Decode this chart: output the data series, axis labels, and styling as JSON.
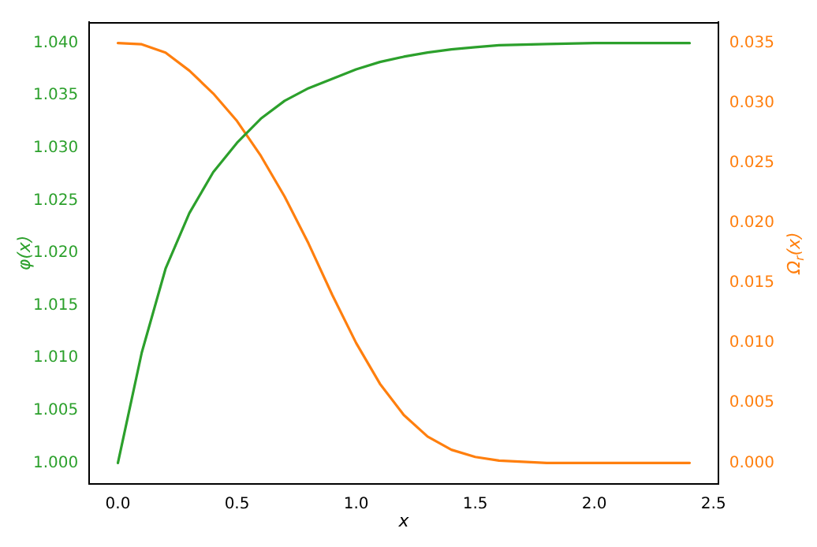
{
  "chart_data": {
    "type": "line",
    "xlabel": "x",
    "ylabel": "φ(x)",
    "y2label": "Ω$_{r}$(x)",
    "grid": false,
    "legend": false,
    "marker": "none",
    "line_style": "solid",
    "xlim": [
      -0.12,
      2.52
    ],
    "xticks": [
      {
        "value": 0,
        "label": "0.0"
      },
      {
        "value": 0.5,
        "label": "0.5"
      },
      {
        "value": 1,
        "label": "1.0"
      },
      {
        "value": 1.5,
        "label": "1.5"
      },
      {
        "value": 2,
        "label": "2.0"
      },
      {
        "value": 2.5,
        "label": "2.5"
      }
    ],
    "ylim": [
      0.998,
      1.042
    ],
    "yticks": [
      {
        "value": 1,
        "label": "1.000"
      },
      {
        "value": 1.005,
        "label": "1.005"
      },
      {
        "value": 1.01,
        "label": "1.010"
      },
      {
        "value": 1.015,
        "label": "1.015"
      },
      {
        "value": 1.02,
        "label": "1.020"
      },
      {
        "value": 1.025,
        "label": "1.025"
      },
      {
        "value": 1.03,
        "label": "1.030"
      },
      {
        "value": 1.035,
        "label": "1.035"
      },
      {
        "value": 1.04,
        "label": "1.040"
      }
    ],
    "y2lim": [
      -0.00175,
      0.03675
    ],
    "y2ticks": [
      {
        "value": 0,
        "label": "0.000"
      },
      {
        "value": 0.005,
        "label": "0.005"
      },
      {
        "value": 0.01,
        "label": "0.010"
      },
      {
        "value": 0.015,
        "label": "0.015"
      },
      {
        "value": 0.02,
        "label": "0.020"
      },
      {
        "value": 0.025,
        "label": "0.025"
      },
      {
        "value": 0.03,
        "label": "0.030"
      },
      {
        "value": 0.035,
        "label": "0.035"
      }
    ],
    "x": [
      0,
      0.1,
      0.2,
      0.3,
      0.4,
      0.5,
      0.6,
      0.7,
      0.8,
      0.9,
      1.0,
      1.1,
      1.2,
      1.3,
      1.4,
      1.5,
      1.6,
      1.8,
      2.0,
      2.4
    ],
    "series": [
      {
        "color": "#2ca02c",
        "values": [
          1.0,
          1.0105,
          1.0185,
          1.0238,
          1.0277,
          1.0305,
          1.0328,
          1.0345,
          1.0357,
          1.0366,
          1.0375,
          1.0382,
          1.0387,
          1.0391,
          1.0394,
          1.0396,
          1.0398,
          1.0399,
          1.04,
          1.04
        ]
      },
      {
        "color": "#ff7f0e",
        "axis": "y2",
        "values": [
          0.035,
          0.0349,
          0.0342,
          0.0327,
          0.0308,
          0.0285,
          0.0256,
          0.0222,
          0.0183,
          0.014,
          0.01,
          0.0066,
          0.004,
          0.0022,
          0.0011,
          0.0005,
          0.0002,
          0,
          0,
          0
        ]
      }
    ]
  }
}
